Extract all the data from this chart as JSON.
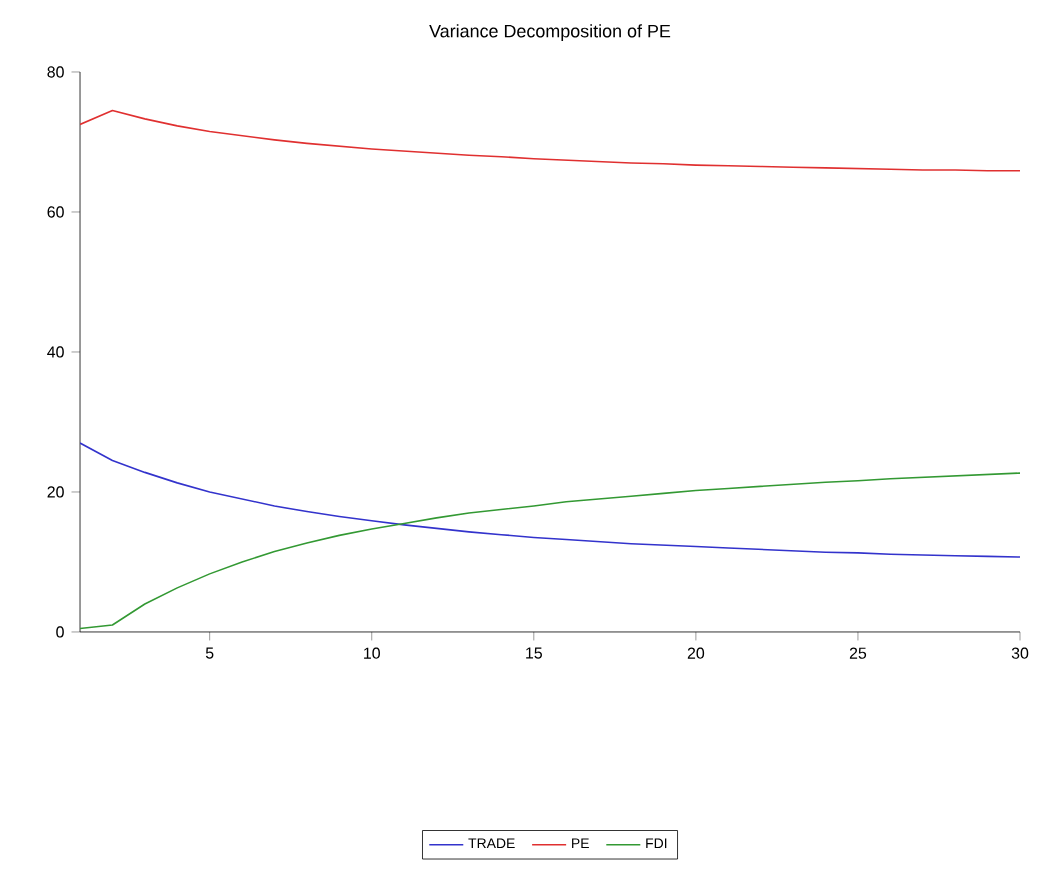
{
  "chart_data": {
    "type": "line",
    "title": "Variance Decomposition of PE",
    "x": [
      1,
      2,
      3,
      4,
      5,
      6,
      7,
      8,
      9,
      10,
      11,
      12,
      13,
      14,
      15,
      16,
      17,
      18,
      19,
      20,
      21,
      22,
      23,
      24,
      25,
      26,
      27,
      28,
      29,
      30
    ],
    "series": [
      {
        "name": "TRADE",
        "color": "#3333cc",
        "values": [
          27,
          24.5,
          22.8,
          21.3,
          20,
          19,
          18,
          17.2,
          16.5,
          15.9,
          15.3,
          14.8,
          14.3,
          13.9,
          13.5,
          13.2,
          12.9,
          12.6,
          12.4,
          12.2,
          12,
          11.8,
          11.6,
          11.4,
          11.3,
          11.1,
          11,
          10.9,
          10.8,
          10.7
        ]
      },
      {
        "name": "PE",
        "color": "#e03030",
        "values": [
          72.5,
          74.5,
          73.3,
          72.3,
          71.5,
          70.9,
          70.3,
          69.8,
          69.4,
          69,
          68.7,
          68.4,
          68.1,
          67.9,
          67.6,
          67.4,
          67.2,
          67,
          66.9,
          66.7,
          66.6,
          66.5,
          66.4,
          66.3,
          66.2,
          66.1,
          66,
          66,
          65.9,
          65.9
        ]
      },
      {
        "name": "FDI",
        "color": "#339933",
        "values": [
          0.5,
          1,
          4,
          6.3,
          8.3,
          10,
          11.5,
          12.7,
          13.8,
          14.7,
          15.5,
          16.3,
          17,
          17.5,
          18,
          18.6,
          19,
          19.4,
          19.8,
          20.2,
          20.5,
          20.8,
          21.1,
          21.4,
          21.6,
          21.9,
          22.1,
          22.3,
          22.5,
          22.7
        ]
      }
    ],
    "xlim": [
      1,
      30
    ],
    "xticks": [
      5,
      10,
      15,
      20,
      25,
      30
    ],
    "ylim": [
      0,
      80
    ],
    "yticks": [
      0,
      20,
      40,
      60,
      80
    ],
    "grid": false,
    "legend": "bottom",
    "marker": "none",
    "line_style": "solid"
  }
}
